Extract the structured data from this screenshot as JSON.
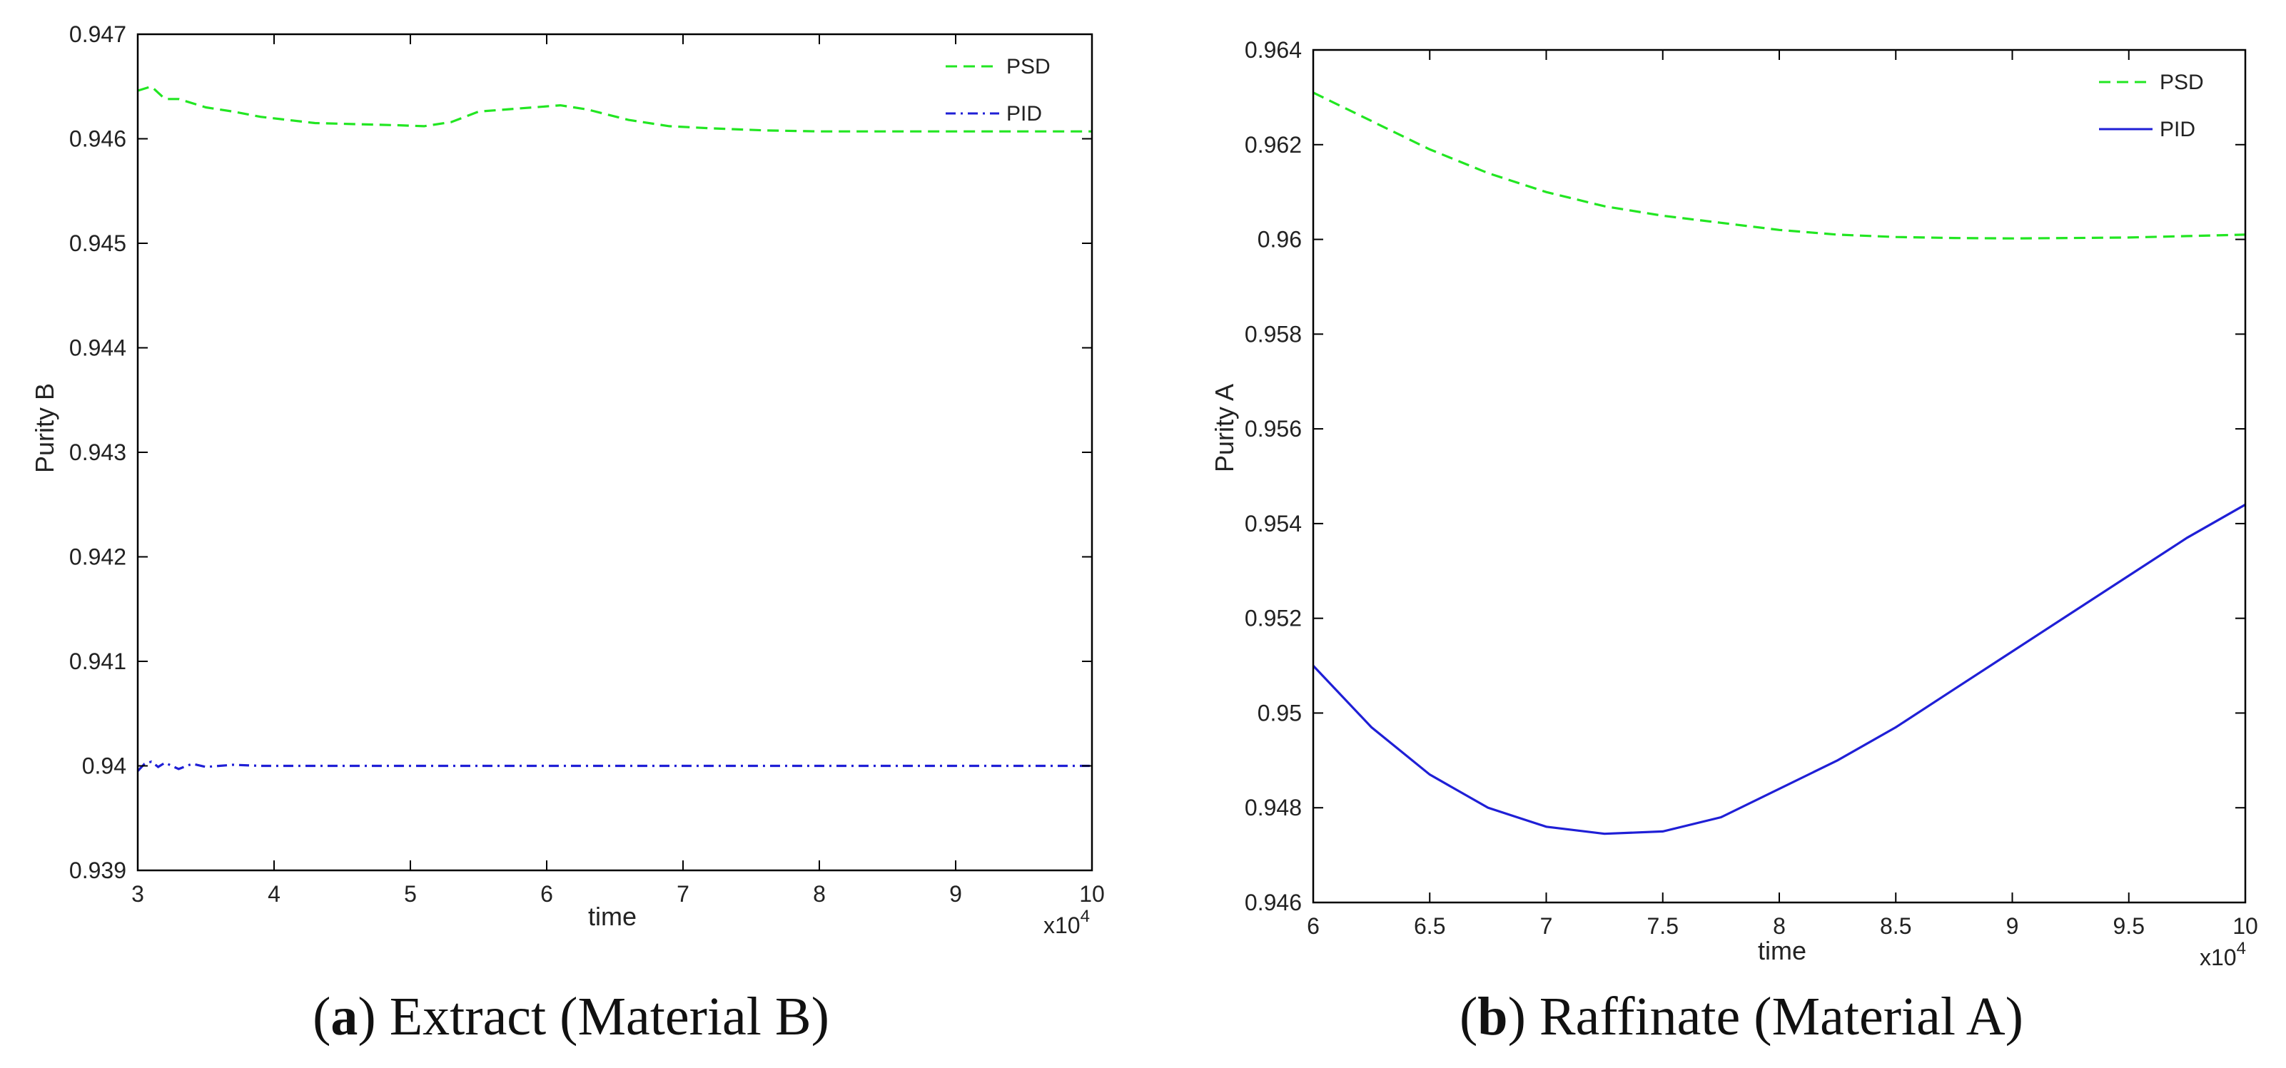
{
  "colors": {
    "psd": "#22e622",
    "pid": "#1f1fd6",
    "axis": "#000000"
  },
  "chart_data": [
    {
      "type": "line",
      "panel": "a",
      "caption_letter": "a",
      "caption_text": "Extract (Material B)",
      "xlabel": "time",
      "ylabel": "Purity B",
      "x_multiplier_base": "x10",
      "x_multiplier_exp": "4",
      "xlim": [
        3,
        10
      ],
      "ylim": [
        0.939,
        0.947
      ],
      "xticks": [
        3,
        4,
        5,
        6,
        7,
        8,
        9,
        10
      ],
      "xtick_labels": [
        "3",
        "4",
        "5",
        "6",
        "7",
        "8",
        "9",
        "10"
      ],
      "yticks": [
        0.939,
        0.94,
        0.941,
        0.942,
        0.943,
        0.944,
        0.945,
        0.946,
        0.947
      ],
      "ytick_labels": [
        "0.939",
        "0.94",
        "0.941",
        "0.942",
        "0.943",
        "0.944",
        "0.945",
        "0.946",
        "0.947"
      ],
      "legend_position": "top-right",
      "series": [
        {
          "name": "PSD",
          "style": "dashed",
          "color_key": "psd",
          "x": [
            3.0,
            3.1,
            3.2,
            3.3,
            3.5,
            3.7,
            3.9,
            4.1,
            4.3,
            4.6,
            4.9,
            5.1,
            5.3,
            5.5,
            5.8,
            6.1,
            6.3,
            6.6,
            6.9,
            7.2,
            7.6,
            8.0,
            8.5,
            9.0,
            9.5,
            10.0
          ],
          "y": [
            0.94646,
            0.9465,
            0.94638,
            0.94638,
            0.9463,
            0.94626,
            0.94621,
            0.94618,
            0.94615,
            0.94614,
            0.94613,
            0.94612,
            0.94616,
            0.94626,
            0.94629,
            0.94632,
            0.94628,
            0.94618,
            0.94612,
            0.9461,
            0.94608,
            0.94607,
            0.94607,
            0.94607,
            0.94607,
            0.94607
          ]
        },
        {
          "name": "PID",
          "style": "dashdot",
          "color_key": "pid",
          "x": [
            3.0,
            3.05,
            3.1,
            3.15,
            3.2,
            3.3,
            3.4,
            3.5,
            3.7,
            3.9,
            4.2,
            5.0,
            6.0,
            7.0,
            8.0,
            9.0,
            10.0
          ],
          "y": [
            0.93995,
            0.94002,
            0.94004,
            0.93999,
            0.94003,
            0.93997,
            0.94002,
            0.93999,
            0.94001,
            0.94,
            0.94,
            0.94,
            0.94,
            0.94,
            0.94,
            0.94,
            0.94
          ]
        }
      ]
    },
    {
      "type": "line",
      "panel": "b",
      "caption_letter": "b",
      "caption_text": "Raffinate (Material A)",
      "xlabel": "time",
      "ylabel": "Purity A",
      "x_multiplier_base": "x10",
      "x_multiplier_exp": "4",
      "xlim": [
        6,
        10
      ],
      "ylim": [
        0.946,
        0.964
      ],
      "xticks": [
        6,
        6.5,
        7,
        7.5,
        8,
        8.5,
        9,
        9.5,
        10
      ],
      "xtick_labels": [
        "6",
        "6.5",
        "7",
        "7.5",
        "8",
        "8.5",
        "9",
        "9.5",
        "10"
      ],
      "yticks": [
        0.946,
        0.948,
        0.95,
        0.952,
        0.954,
        0.956,
        0.958,
        0.96,
        0.962,
        0.964
      ],
      "ytick_labels": [
        "0.946",
        "0.948",
        "0.95",
        "0.952",
        "0.954",
        "0.956",
        "0.958",
        "0.96",
        "0.962",
        "0.964"
      ],
      "legend_position": "top-right",
      "series": [
        {
          "name": "PSD",
          "style": "dashed",
          "color_key": "psd",
          "x": [
            6.0,
            6.25,
            6.5,
            6.75,
            7.0,
            7.25,
            7.5,
            7.75,
            8.0,
            8.25,
            8.5,
            8.75,
            9.0,
            9.25,
            9.5,
            9.75,
            10.0
          ],
          "y": [
            0.9631,
            0.9625,
            0.9619,
            0.9614,
            0.961,
            0.9607,
            0.9605,
            0.96035,
            0.9602,
            0.9601,
            0.96005,
            0.96003,
            0.96002,
            0.96003,
            0.96004,
            0.96007,
            0.9601
          ]
        },
        {
          "name": "PID",
          "style": "solid",
          "color_key": "pid",
          "x": [
            6.0,
            6.25,
            6.5,
            6.75,
            7.0,
            7.25,
            7.5,
            7.75,
            8.0,
            8.25,
            8.5,
            8.75,
            9.0,
            9.25,
            9.5,
            9.75,
            10.0
          ],
          "y": [
            0.951,
            0.9497,
            0.9487,
            0.948,
            0.9476,
            0.94745,
            0.9475,
            0.9478,
            0.9484,
            0.949,
            0.9497,
            0.9505,
            0.9513,
            0.9521,
            0.9529,
            0.9537,
            0.9544
          ]
        }
      ]
    }
  ]
}
